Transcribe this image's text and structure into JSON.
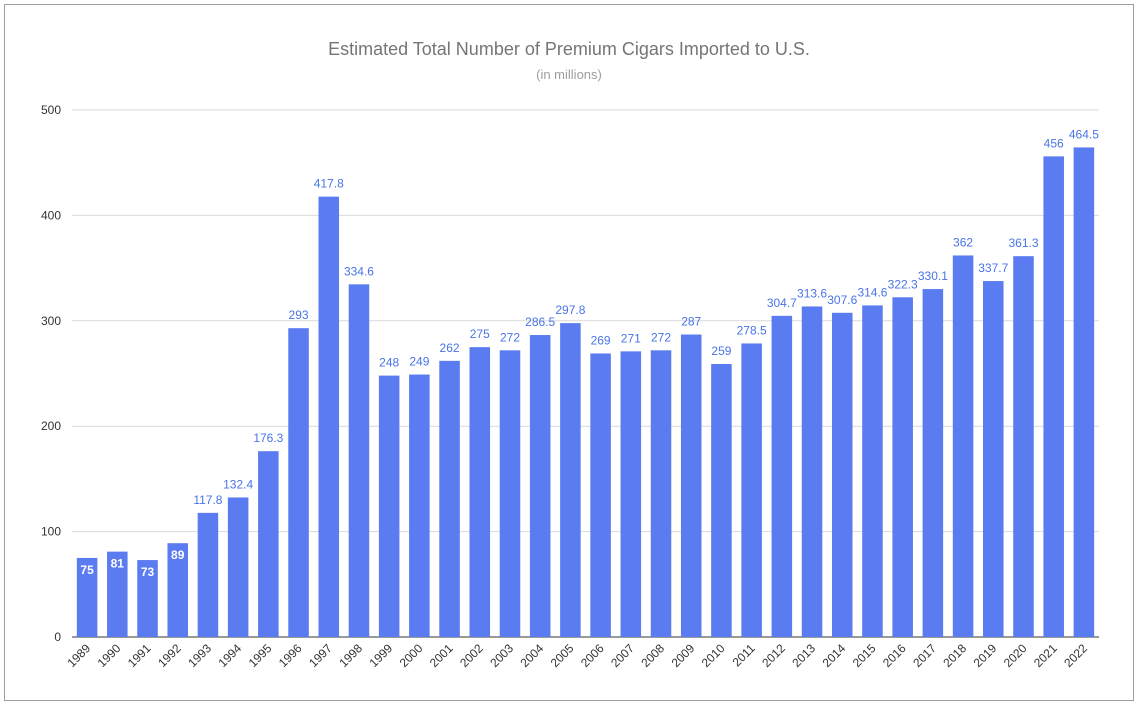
{
  "chart_data": {
    "type": "bar",
    "title": "Estimated Total Number of Premium Cigars Imported to U.S.",
    "subtitle": "(in millions)",
    "xlabel": "",
    "ylabel": "",
    "ylim": [
      0,
      500
    ],
    "yticks": [
      "0",
      "100",
      "200",
      "300",
      "400",
      "500"
    ],
    "grid": true,
    "bar_color": "#5b7cf0",
    "label_color": "#4a74e8",
    "categories": [
      "1989",
      "1990",
      "1991",
      "1992",
      "1993",
      "1994",
      "1995",
      "1996",
      "1997",
      "1998",
      "1999",
      "2000",
      "2001",
      "2002",
      "2003",
      "2004",
      "2005",
      "2006",
      "2007",
      "2008",
      "2009",
      "2010",
      "2011",
      "2012",
      "2013",
      "2014",
      "2015",
      "2016",
      "2017",
      "2018",
      "2019",
      "2020",
      "2021",
      "2022"
    ],
    "values": [
      75,
      81,
      73,
      89,
      117.8,
      132.4,
      176.3,
      293,
      417.8,
      334.6,
      248,
      249,
      262,
      275,
      272,
      286.5,
      297.8,
      269,
      271,
      272,
      287,
      259,
      278.5,
      304.7,
      313.6,
      307.6,
      314.6,
      322.3,
      330.1,
      362,
      337.7,
      361.3,
      456,
      464.5
    ],
    "labels": [
      "75",
      "81",
      "73",
      "89",
      "117.8",
      "132.4",
      "176.3",
      "293",
      "417.8",
      "334.6",
      "248",
      "249",
      "262",
      "275",
      "272",
      "286.5",
      "297.8",
      "269",
      "271",
      "272",
      "287",
      "259",
      "278.5",
      "304.7",
      "313.6",
      "307.6",
      "314.6",
      "322.3",
      "330.1",
      "362",
      "337.7",
      "361.3",
      "456",
      "464.5"
    ]
  }
}
